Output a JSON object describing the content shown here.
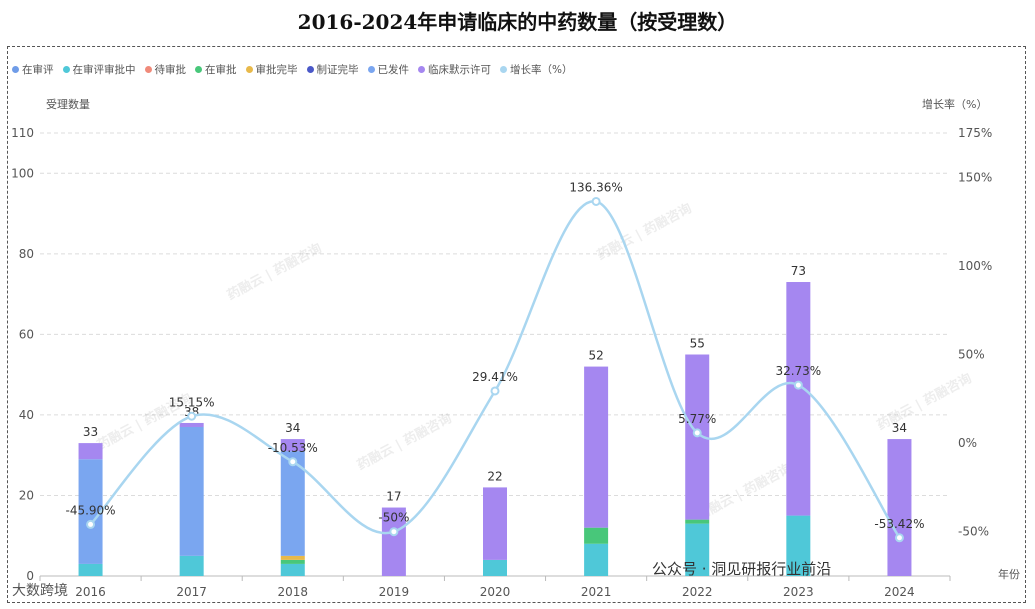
{
  "chart_data": {
    "type": "bar",
    "title": "2016-2024年申请临床的中药数量（按受理数）",
    "ylabel": "受理数量",
    "y2label": "增长率（%）",
    "xlabel": "年份",
    "categories": [
      "2016",
      "2017",
      "2018",
      "2019",
      "2020",
      "2021",
      "2022",
      "2023",
      "2024"
    ],
    "ylim": [
      0,
      110
    ],
    "y_ticks": [
      0,
      20,
      40,
      60,
      80,
      100,
      110
    ],
    "y2lim": [
      -75,
      175
    ],
    "y2_ticks": [
      "-50%",
      "0%",
      "50%",
      "100%",
      "150%",
      "175%"
    ],
    "y2_tick_values": [
      -50,
      0,
      50,
      100,
      150,
      175
    ],
    "bar_series": [
      {
        "name": "在审评",
        "color": "#6f9ce8",
        "values": [
          0,
          0,
          0,
          0,
          0,
          0,
          0,
          0,
          0
        ]
      },
      {
        "name": "在审评审批中",
        "color": "#4fc8d8",
        "values": [
          3,
          5,
          3,
          0,
          4,
          8,
          13,
          15,
          0
        ]
      },
      {
        "name": "待审批",
        "color": "#f08a7a",
        "values": [
          0,
          0,
          0,
          0,
          0,
          0,
          0,
          0,
          0
        ]
      },
      {
        "name": "在审批",
        "color": "#48c77a",
        "values": [
          0,
          0,
          1,
          0,
          0,
          4,
          1,
          0,
          0
        ]
      },
      {
        "name": "审批完毕",
        "color": "#e8b94a",
        "values": [
          0,
          0,
          1,
          0,
          0,
          0,
          0,
          0,
          0
        ]
      },
      {
        "name": "制证完毕",
        "color": "#4a58c8",
        "values": [
          0,
          0,
          0,
          0,
          0,
          0,
          0,
          0,
          0
        ]
      },
      {
        "name": "已发件",
        "color": "#7aa6f0",
        "values": [
          26,
          32,
          26,
          0,
          0,
          0,
          0,
          0,
          0
        ]
      },
      {
        "name": "临床默示许可",
        "color": "#a587f0",
        "values": [
          4,
          1,
          3,
          17,
          18,
          40,
          41,
          58,
          34
        ]
      }
    ],
    "totals": [
      33,
      38,
      34,
      17,
      22,
      52,
      55,
      73,
      34
    ],
    "line_series": {
      "name": "增长率（%）",
      "color": "#a9d6f0",
      "values": [
        -45.9,
        15.15,
        -10.53,
        -50,
        29.41,
        136.36,
        5.77,
        32.73,
        -53.42
      ],
      "labels": [
        "-45.90%",
        "15.15%",
        "-10.53%",
        "-50%",
        "29.41%",
        "136.36%",
        "5.77%",
        "32.73%",
        "-53.42%"
      ]
    }
  },
  "legend": [
    {
      "label": "在审评",
      "color": "#6f9ce8"
    },
    {
      "label": "在审评审批中",
      "color": "#4fc8d8"
    },
    {
      "label": "待审批",
      "color": "#f08a7a"
    },
    {
      "label": "在审批",
      "color": "#48c77a"
    },
    {
      "label": "审批完毕",
      "color": "#e8b94a"
    },
    {
      "label": "制证完毕",
      "color": "#4a58c8"
    },
    {
      "label": "已发件",
      "color": "#7aa6f0"
    },
    {
      "label": "临床默示许可",
      "color": "#a587f0"
    },
    {
      "label": "增长率（%）",
      "color": "#a9d6f0"
    }
  ],
  "watermarks": {
    "brand": "药融云 | 药融咨询",
    "account": "公众号 · 洞见研报行业前沿",
    "corner": "大数跨境"
  }
}
